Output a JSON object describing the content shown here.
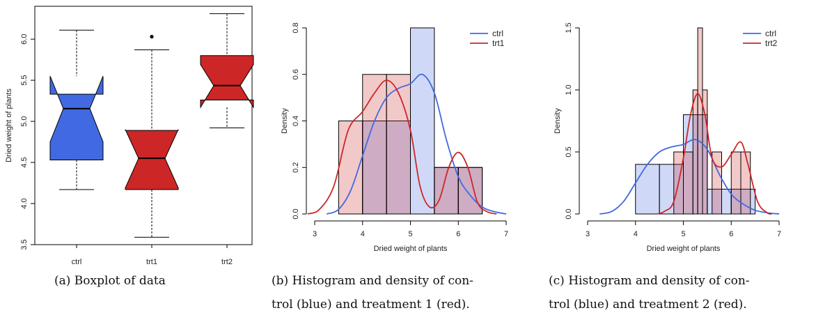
{
  "colors": {
    "blue": "#4169e1",
    "red": "#cd2626",
    "blue_fill": "#c9d6f3",
    "red_fill": "#f2c4c4",
    "overlap": "#c9a8c0"
  },
  "captions": {
    "a": "(a) Boxplot of data",
    "b_line1": "(b) Histogram and density of con-",
    "b_line2": "trol (blue) and treatment 1 (red).",
    "c_line1": "(c) Histogram and density of con-",
    "c_line2": "trol (blue) and treatment 2 (red)."
  },
  "chart_data": [
    {
      "type": "boxplot",
      "ylabel": "Dried weight of plants",
      "ylim": [
        3.5,
        6.4
      ],
      "yticks": [
        3.5,
        4.0,
        4.5,
        5.0,
        5.5,
        6.0
      ],
      "categories": [
        "ctrl",
        "trt1",
        "trt2"
      ],
      "notched": true,
      "boxes": [
        {
          "name": "ctrl",
          "color": "#4169e1",
          "min": 4.17,
          "q1": 4.53,
          "median": 5.155,
          "q3": 5.33,
          "max": 6.11,
          "notch_lo": 4.75,
          "notch_hi": 5.55,
          "outliers": []
        },
        {
          "name": "trt1",
          "color": "#cd2626",
          "min": 3.59,
          "q1": 4.17,
          "median": 4.55,
          "q3": 4.89,
          "max": 5.87,
          "notch_lo": 4.19,
          "notch_hi": 4.9,
          "outliers": [
            6.03
          ]
        },
        {
          "name": "trt2",
          "color": "#cd2626",
          "min": 4.92,
          "q1": 5.26,
          "median": 5.435,
          "q3": 5.8,
          "max": 6.31,
          "notch_lo": 5.17,
          "notch_hi": 5.69,
          "outliers": []
        }
      ]
    },
    {
      "type": "histogram",
      "xlabel": "Dried weight of plants",
      "ylabel": "Density",
      "xlim": [
        3,
        7
      ],
      "ylim": [
        0,
        0.8
      ],
      "xticks": [
        3,
        4,
        5,
        6,
        7
      ],
      "yticks": [
        0.0,
        0.2,
        0.4,
        0.6,
        0.8
      ],
      "legend": [
        "ctrl",
        "trt1"
      ],
      "legend_position": "top-right",
      "series": [
        {
          "name": "ctrl",
          "color": "#4169e1",
          "bins": [
            [
              4.0,
              4.5,
              0.4
            ],
            [
              4.5,
              5.0,
              0.4
            ],
            [
              5.0,
              5.5,
              0.8
            ],
            [
              5.5,
              6.0,
              0.2
            ],
            [
              6.0,
              6.5,
              0.2
            ]
          ],
          "density": [
            [
              3.25,
              0.0
            ],
            [
              3.5,
              0.02
            ],
            [
              3.75,
              0.1
            ],
            [
              4.0,
              0.25
            ],
            [
              4.25,
              0.4
            ],
            [
              4.5,
              0.5
            ],
            [
              4.75,
              0.54
            ],
            [
              5.0,
              0.56
            ],
            [
              5.25,
              0.6
            ],
            [
              5.5,
              0.52
            ],
            [
              5.75,
              0.32
            ],
            [
              6.0,
              0.16
            ],
            [
              6.25,
              0.08
            ],
            [
              6.5,
              0.03
            ],
            [
              6.75,
              0.01
            ],
            [
              7.0,
              0.0
            ]
          ]
        },
        {
          "name": "trt1",
          "color": "#cd2626",
          "bins": [
            [
              3.5,
              4.0,
              0.4
            ],
            [
              4.0,
              4.5,
              0.6
            ],
            [
              4.5,
              5.0,
              0.6
            ],
            [
              5.5,
              6.0,
              0.2
            ],
            [
              6.0,
              6.5,
              0.2
            ]
          ],
          "density": [
            [
              2.85,
              0.0
            ],
            [
              3.1,
              0.02
            ],
            [
              3.4,
              0.12
            ],
            [
              3.7,
              0.36
            ],
            [
              4.0,
              0.44
            ],
            [
              4.25,
              0.52
            ],
            [
              4.5,
              0.575
            ],
            [
              4.75,
              0.52
            ],
            [
              5.0,
              0.36
            ],
            [
              5.2,
              0.12
            ],
            [
              5.4,
              0.03
            ],
            [
              5.6,
              0.06
            ],
            [
              5.8,
              0.2
            ],
            [
              6.0,
              0.265
            ],
            [
              6.2,
              0.2
            ],
            [
              6.4,
              0.05
            ],
            [
              6.6,
              0.01
            ],
            [
              6.8,
              0.0
            ]
          ]
        }
      ]
    },
    {
      "type": "histogram",
      "xlabel": "Dried weight of plants",
      "ylabel": "Density",
      "xlim": [
        3,
        7
      ],
      "ylim": [
        0,
        1.5
      ],
      "xticks": [
        3,
        4,
        5,
        6,
        7
      ],
      "yticks": [
        0.0,
        0.5,
        1.0,
        1.5
      ],
      "legend": [
        "ctrl",
        "trt2"
      ],
      "legend_position": "top-right",
      "series": [
        {
          "name": "ctrl",
          "color": "#4169e1",
          "bins": [
            [
              4.0,
              4.5,
              0.4
            ],
            [
              4.5,
              5.0,
              0.4
            ],
            [
              5.0,
              5.5,
              0.8
            ],
            [
              5.5,
              6.0,
              0.2
            ],
            [
              6.0,
              6.5,
              0.2
            ]
          ],
          "density": [
            [
              3.25,
              0.0
            ],
            [
              3.5,
              0.02
            ],
            [
              3.75,
              0.1
            ],
            [
              4.0,
              0.25
            ],
            [
              4.25,
              0.4
            ],
            [
              4.5,
              0.5
            ],
            [
              4.75,
              0.54
            ],
            [
              5.0,
              0.56
            ],
            [
              5.25,
              0.6
            ],
            [
              5.5,
              0.52
            ],
            [
              5.75,
              0.32
            ],
            [
              6.0,
              0.16
            ],
            [
              6.25,
              0.08
            ],
            [
              6.5,
              0.03
            ],
            [
              6.75,
              0.01
            ],
            [
              7.0,
              0.0
            ]
          ]
        },
        {
          "name": "trt2",
          "color": "#cd2626",
          "bins": [
            [
              4.8,
              5.0,
              0.5
            ],
            [
              5.0,
              5.2,
              0.5
            ],
            [
              5.2,
              5.3,
              1.0
            ],
            [
              5.3,
              5.4,
              1.5
            ],
            [
              5.4,
              5.5,
              1.0
            ],
            [
              5.6,
              5.8,
              0.5
            ],
            [
              6.0,
              6.2,
              0.5
            ],
            [
              6.2,
              6.4,
              0.5
            ]
          ],
          "density": [
            [
              4.45,
              0.0
            ],
            [
              4.6,
              0.02
            ],
            [
              4.8,
              0.1
            ],
            [
              5.0,
              0.45
            ],
            [
              5.15,
              0.8
            ],
            [
              5.3,
              0.97
            ],
            [
              5.45,
              0.8
            ],
            [
              5.6,
              0.45
            ],
            [
              5.8,
              0.38
            ],
            [
              6.0,
              0.48
            ],
            [
              6.2,
              0.58
            ],
            [
              6.35,
              0.4
            ],
            [
              6.55,
              0.1
            ],
            [
              6.75,
              0.01
            ],
            [
              6.85,
              0.0
            ]
          ]
        }
      ]
    }
  ]
}
